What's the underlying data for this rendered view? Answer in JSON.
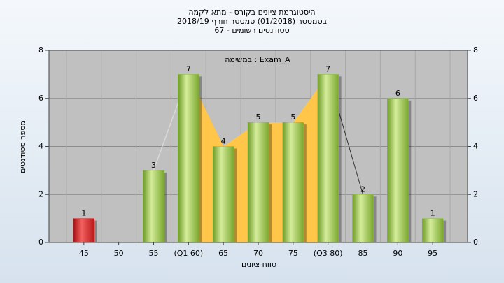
{
  "chart_data": {
    "type": "bar",
    "title": [
      "היסטוגרמת ציונים בקורס - מתא לקמה",
      "בסמסטר  (01/2018)  סמסטר חורף 2018/19",
      "סטודנטים רשומים - 67"
    ],
    "annotation": "במשימה : Exam_A",
    "x_label": "טווח ציונים",
    "y_label": "מספר סטודנטים",
    "categories": [
      "45",
      "50",
      "55",
      "(Q1 60)",
      "65",
      "70",
      "75",
      "(Q3 80)",
      "85",
      "90",
      "95"
    ],
    "values": [
      1,
      0,
      3,
      7,
      4,
      5,
      5,
      7,
      2,
      6,
      1
    ],
    "colors": [
      "#d42020",
      "#8cbf3a",
      "#8cbf3a",
      "#8cbf3a",
      "#8cbf3a",
      "#8cbf3a",
      "#8cbf3a",
      "#8cbf3a",
      "#8cbf3a",
      "#8cbf3a",
      "#8cbf3a"
    ],
    "ylim": [
      0,
      8
    ],
    "yticks": [
      0,
      2,
      4,
      6,
      8
    ],
    "grid": true
  }
}
